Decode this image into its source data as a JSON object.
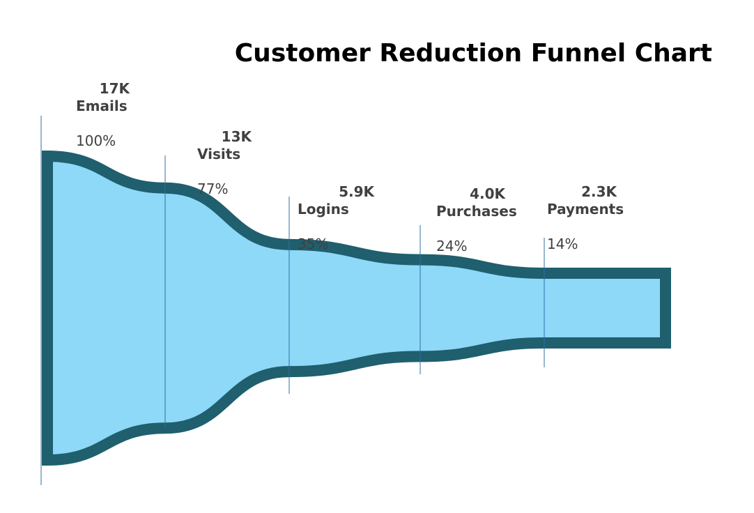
{
  "chart_data": {
    "type": "funnel",
    "title": "Customer Reduction Funnel Chart",
    "stages": [
      {
        "name": "Emails",
        "value": 17000,
        "value_label": "17K",
        "percent_label": "100%"
      },
      {
        "name": "Visits",
        "value": 13000,
        "value_label": "13K",
        "percent_label": "77%"
      },
      {
        "name": "Logins",
        "value": 5900,
        "value_label": "5.9K",
        "percent_label": "35%"
      },
      {
        "name": "Purchases",
        "value": 4000,
        "value_label": "4.0K",
        "percent_label": "24%"
      },
      {
        "name": "Payments",
        "value": 2300,
        "value_label": "2.3K",
        "percent_label": "14%"
      }
    ]
  },
  "colors": {
    "fill": "#8ed8f8",
    "outline": "#1f5f6e",
    "divider": "#2e6fa3",
    "label_text": "#404040",
    "title_text": "#000000"
  }
}
